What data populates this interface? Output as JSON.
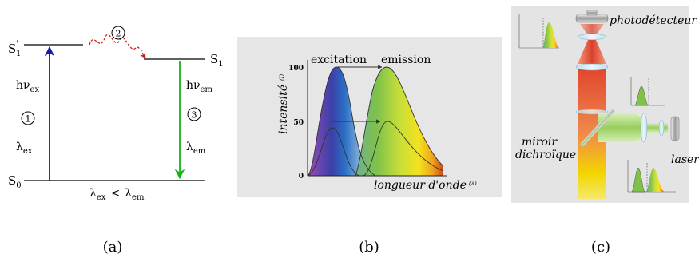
{
  "panel_a": {
    "level_s1_prime": "S",
    "level_s1_prime_sub": "1",
    "level_s1_prime_mark": "'",
    "level_s1": "S",
    "level_s1_sub": "1",
    "level_s0": "S",
    "level_s0_sub": "0",
    "hv_ex": "hν",
    "hv_ex_sub": "ex",
    "hv_em": "hν",
    "hv_em_sub": "em",
    "lambda_ex": "λ",
    "lambda_ex_sub": "ex",
    "lambda_em": "λ",
    "lambda_em_sub": "em",
    "step_1": "1",
    "step_2": "2",
    "step_3": "3",
    "relation_left": "λ",
    "relation_left_sub": "ex",
    "relation_op": "<",
    "relation_right": "λ",
    "relation_right_sub": "em",
    "colors": {
      "excitation_arrow": "#1a1aa8",
      "emission_arrow": "#19b319",
      "relaxation_arrow": "#d42020"
    }
  },
  "panel_b": {
    "label_excitation": "excitation",
    "label_emission": "emission",
    "y_label": "intensité",
    "y_label_unit": "(I)",
    "x_label": "longueur d'onde",
    "x_label_unit": "(λ)",
    "ticks": [
      "100",
      "50",
      "0"
    ]
  },
  "panel_c": {
    "label_photodetector": "photodétecteur",
    "label_mirror_line1": "miroir",
    "label_mirror_line2": "dichroïque",
    "label_laser": "laser"
  },
  "captions": [
    "(a)",
    "(b)",
    "(c)"
  ]
}
